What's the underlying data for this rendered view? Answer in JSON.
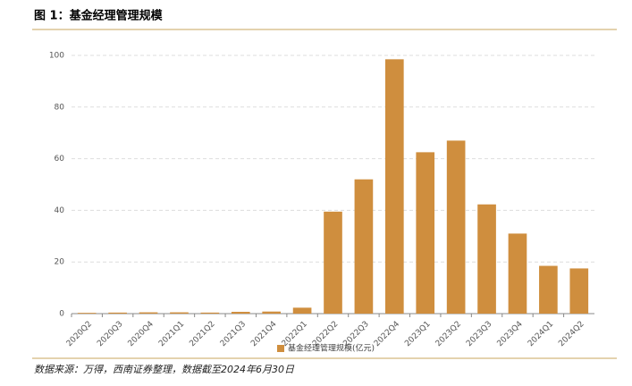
{
  "chart_data": {
    "type": "bar",
    "title": "图 1：基金经理管理规模",
    "categories": [
      "2020Q2",
      "2020Q3",
      "2020Q4",
      "2021Q1",
      "2021Q2",
      "2021Q3",
      "2021Q4",
      "2022Q1",
      "2022Q2",
      "2022Q3",
      "2022Q4",
      "2023Q1",
      "2023Q2",
      "2023Q3",
      "2023Q4",
      "2024Q1",
      "2024Q2"
    ],
    "series": [
      {
        "name": "基金经理管理规模(亿元)",
        "color": "#cf8e3e",
        "values": [
          0.3,
          0.4,
          0.5,
          0.5,
          0.4,
          0.7,
          0.8,
          2.3,
          39.5,
          52,
          98.5,
          62.5,
          67,
          42.3,
          31,
          18.5,
          17.5
        ]
      }
    ],
    "ylim": [
      0,
      100
    ],
    "yticks": [
      0,
      20,
      40,
      60,
      80,
      100
    ],
    "grid": true,
    "legend": "bottom",
    "source": "数据来源：万得，西南证券整理，数据截至2024年6月30日"
  }
}
